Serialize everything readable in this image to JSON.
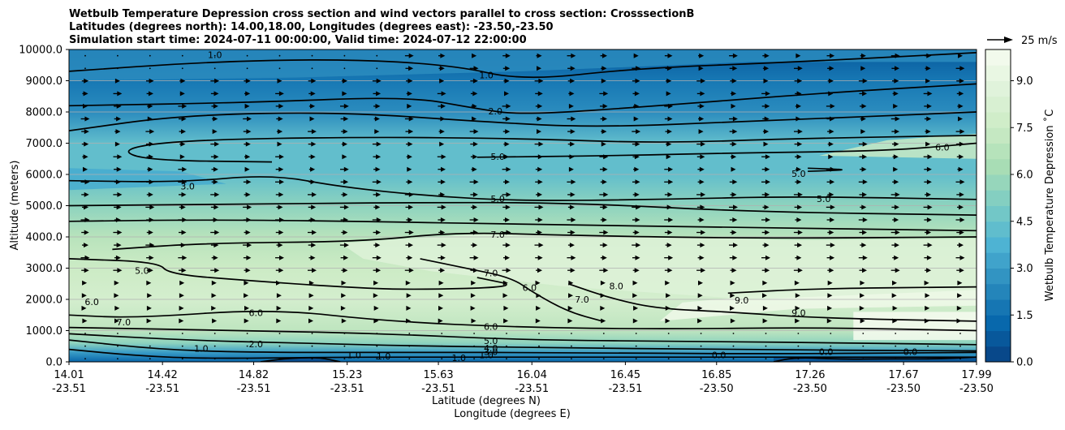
{
  "chart_data": {
    "type": "contour",
    "title_lines": [
      "Wetbulb Temperature Depression cross section and wind vectors parallel to cross section: CrosssectionB",
      "Latitudes (degrees north): 14.00,18.00, Longitudes (degrees east): -23.50,-23.50",
      "Simulation start time: 2024-07-11 00:00:00, Valid time: 2024-07-12 22:00:00"
    ],
    "ylabel": "Altitude (meters)",
    "xlabel_lat": "Latitude (degrees N)",
    "xlabel_lon": "Longitude (degrees E)",
    "xlim": [
      14.01,
      17.99
    ],
    "ylim": [
      0,
      10000
    ],
    "y_ticks": [
      {
        "value": 0,
        "label": "0.0"
      },
      {
        "value": 1000,
        "label": "1000.0"
      },
      {
        "value": 2000,
        "label": "2000.0"
      },
      {
        "value": 3000,
        "label": "3000.0"
      },
      {
        "value": 4000,
        "label": "4000.0"
      },
      {
        "value": 5000,
        "label": "5000.0"
      },
      {
        "value": 6000,
        "label": "6000.0"
      },
      {
        "value": 7000,
        "label": "7000.0"
      },
      {
        "value": 8000,
        "label": "8000.0"
      },
      {
        "value": 9000,
        "label": "9000.0"
      },
      {
        "value": 10000,
        "label": "10000.0"
      }
    ],
    "x_ticks": [
      {
        "value": 14.01,
        "lat": "14.01",
        "lon": "-23.51"
      },
      {
        "value": 14.42,
        "lat": "14.42",
        "lon": "-23.51"
      },
      {
        "value": 14.82,
        "lat": "14.82",
        "lon": "-23.51"
      },
      {
        "value": 15.23,
        "lat": "15.23",
        "lon": "-23.51"
      },
      {
        "value": 15.63,
        "lat": "15.63",
        "lon": "-23.51"
      },
      {
        "value": 16.04,
        "lat": "16.04",
        "lon": "-23.51"
      },
      {
        "value": 16.45,
        "lat": "16.45",
        "lon": "-23.51"
      },
      {
        "value": 16.85,
        "lat": "16.85",
        "lon": "-23.50"
      },
      {
        "value": 17.26,
        "lat": "17.26",
        "lon": "-23.50"
      },
      {
        "value": 17.67,
        "lat": "17.67",
        "lon": "-23.50"
      },
      {
        "value": 17.99,
        "lat": "17.99",
        "lon": "-23.50"
      }
    ],
    "grid_y": true,
    "colorbar": {
      "label": "Wetbulb Temperature Depression ˚C",
      "min": 0,
      "max": 10,
      "levels": 20,
      "colormap": "GnBu_r",
      "ticks": [
        {
          "value": 0,
          "label": "0.0"
        },
        {
          "value": 1.5,
          "label": "1.5"
        },
        {
          "value": 3,
          "label": "3.0"
        },
        {
          "value": 4.5,
          "label": "4.5"
        },
        {
          "value": 6,
          "label": "6.0"
        },
        {
          "value": 7.5,
          "label": "7.5"
        },
        {
          "value": 9,
          "label": "9.0"
        }
      ]
    },
    "quiver_key": {
      "label": "25 m/s",
      "value": 25
    },
    "contour_labels": [
      {
        "text": "1.0",
        "x": 15.84,
        "y": 9150
      },
      {
        "text": "2.0",
        "x": 15.88,
        "y": 8000
      },
      {
        "text": "5.0",
        "x": 15.89,
        "y": 6550
      },
      {
        "text": "5.0",
        "x": 15.89,
        "y": 5200
      },
      {
        "text": "5.0",
        "x": 17.21,
        "y": 6000
      },
      {
        "text": "5.0",
        "x": 17.32,
        "y": 5200
      },
      {
        "text": "6.0",
        "x": 17.84,
        "y": 6850
      },
      {
        "text": "3.0",
        "x": 14.53,
        "y": 5600
      },
      {
        "text": "7.0",
        "x": 15.89,
        "y": 4050
      },
      {
        "text": "7.0",
        "x": 15.86,
        "y": 2820
      },
      {
        "text": "7.0",
        "x": 16.26,
        "y": 1980
      },
      {
        "text": "8.0",
        "x": 16.41,
        "y": 2400
      },
      {
        "text": "9.0",
        "x": 16.96,
        "y": 1950
      },
      {
        "text": "9.0",
        "x": 17.21,
        "y": 1550
      },
      {
        "text": "6.0",
        "x": 16.03,
        "y": 2350
      },
      {
        "text": "6.0",
        "x": 14.11,
        "y": 1900
      },
      {
        "text": "6.0",
        "x": 14.83,
        "y": 1550
      },
      {
        "text": "7.0",
        "x": 14.25,
        "y": 1250
      },
      {
        "text": "5.0",
        "x": 14.33,
        "y": 2900
      },
      {
        "text": "6.0",
        "x": 15.86,
        "y": 1100
      },
      {
        "text": "5.0",
        "x": 15.86,
        "y": 650
      },
      {
        "text": "4.0",
        "x": 15.86,
        "y": 420
      },
      {
        "text": "3.0",
        "x": 15.86,
        "y": 300
      },
      {
        "text": "2.0",
        "x": 14.83,
        "y": 550
      },
      {
        "text": "1.0",
        "x": 14.59,
        "y": 400
      },
      {
        "text": "1.0",
        "x": 15.26,
        "y": 200
      },
      {
        "text": "1.0",
        "x": 15.39,
        "y": 150
      },
      {
        "text": "1.0",
        "x": 15.72,
        "y": 100
      },
      {
        "text": "1.0",
        "x": 15.84,
        "y": 200
      },
      {
        "text": "0.0",
        "x": 16.86,
        "y": 200
      },
      {
        "text": "0.0",
        "x": 17.33,
        "y": 300
      },
      {
        "text": "0.0",
        "x": 17.7,
        "y": 300
      },
      {
        "text": "1.0",
        "x": 14.65,
        "y": 9800
      }
    ]
  }
}
